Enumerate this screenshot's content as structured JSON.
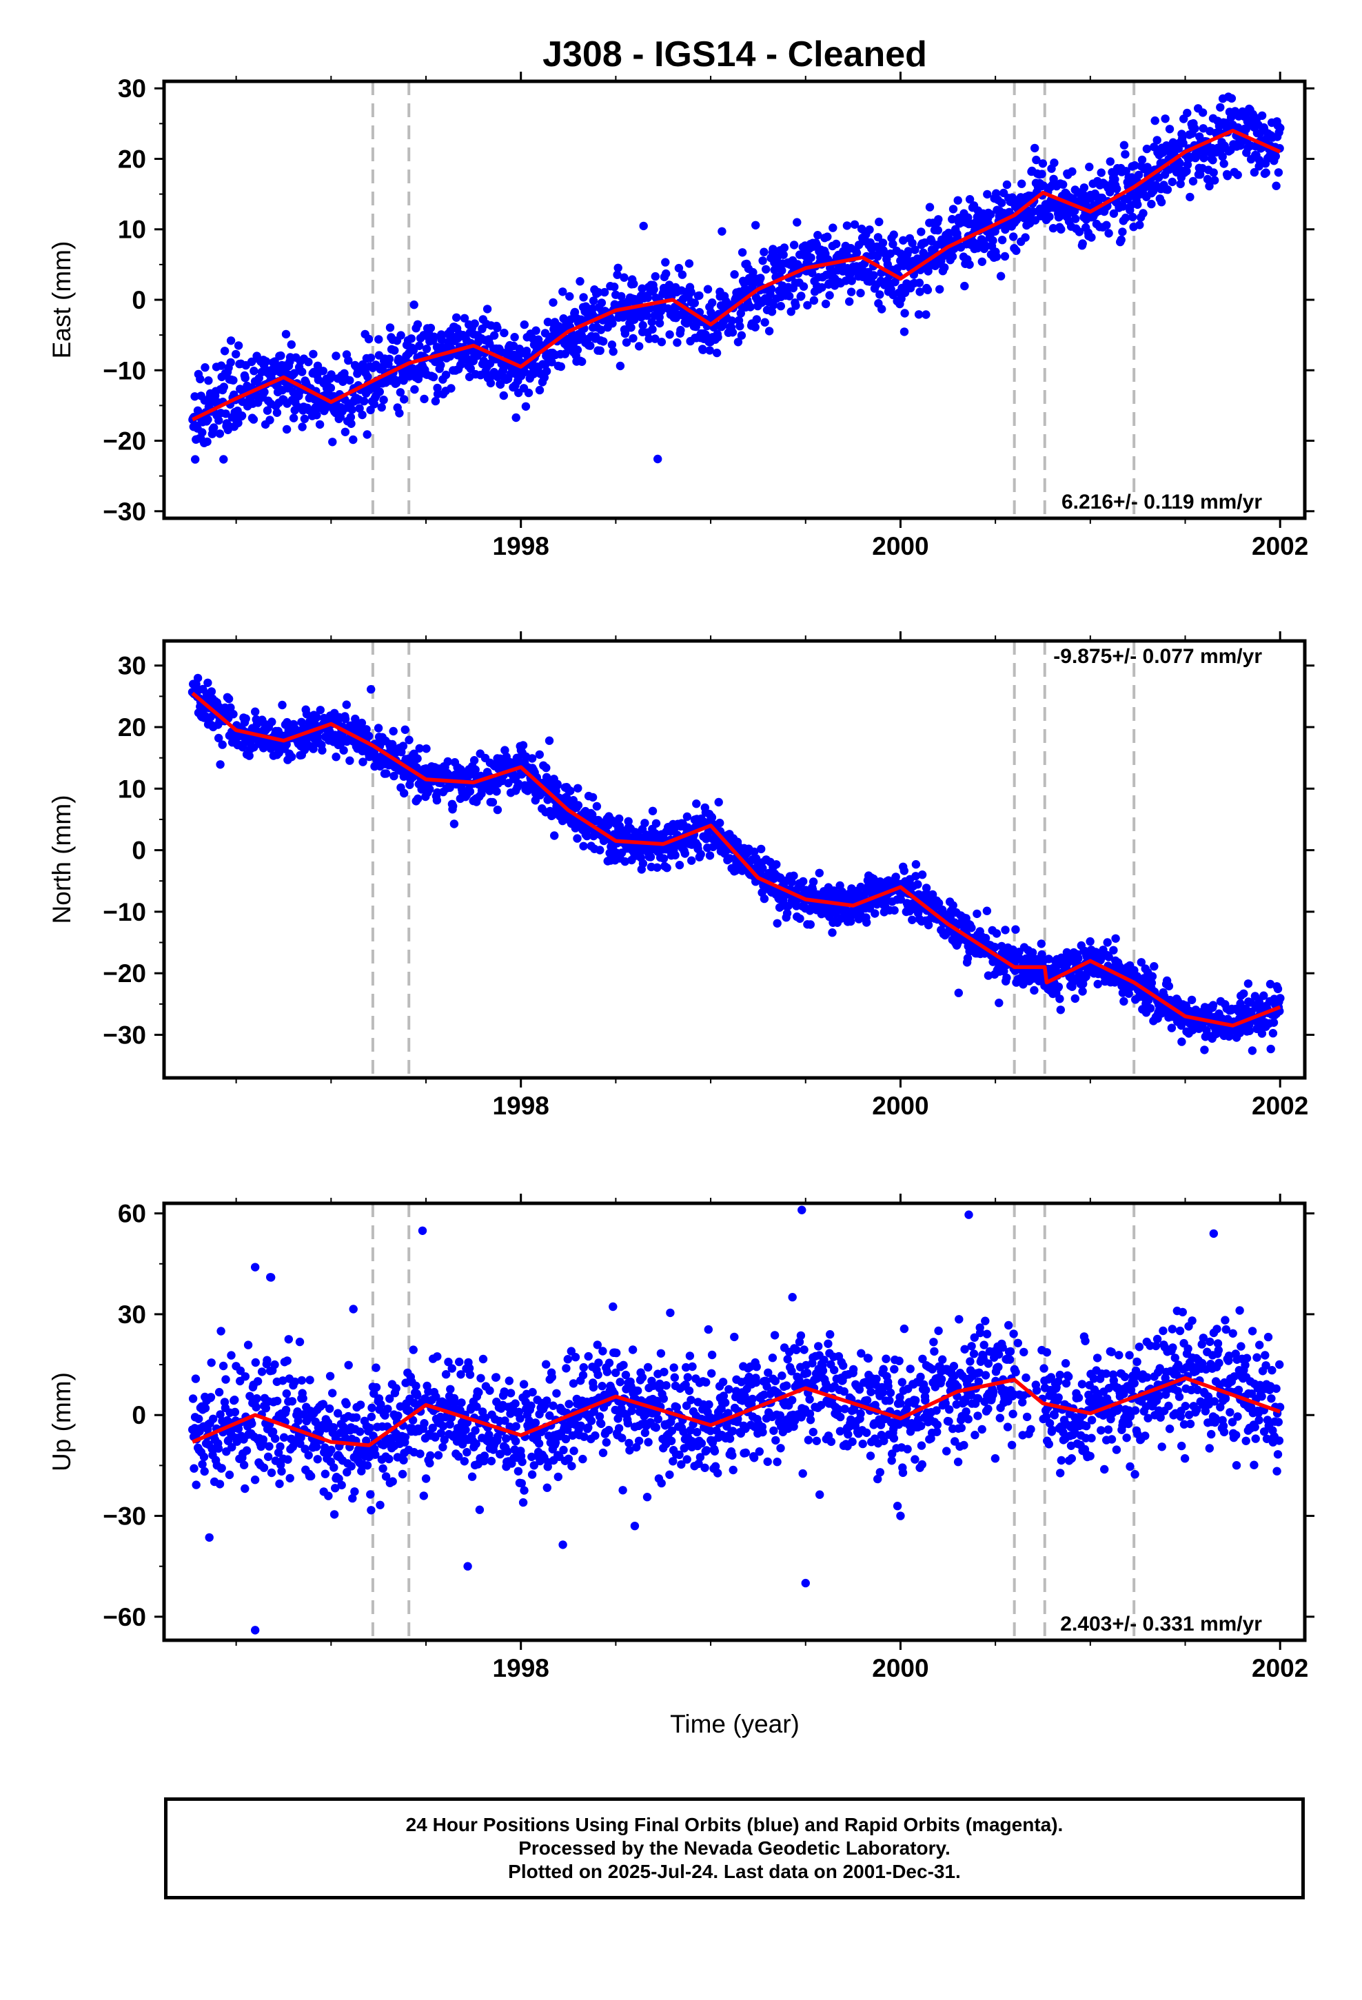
{
  "title": "J308  - IGS14 - Cleaned",
  "footer": {
    "line1": "24 Hour Positions Using Final Orbits (blue) and Rapid Orbits (magenta).",
    "line2": "Processed by the Nevada Geodetic Laboratory.",
    "line3": "Plotted on 2025-Jul-24. Last data on 2001-Dec-31."
  },
  "colors": {
    "points": "#0000ff",
    "model": "#ff0000",
    "breaks": "#bbbbbb",
    "frame": "#000000"
  },
  "xlabel": "Time (year)",
  "chart_data": [
    {
      "type": "scatter",
      "name": "east",
      "ylabel": "East (mm)",
      "xlim": [
        1996.12,
        2002.13
      ],
      "ylim": [
        -31,
        31
      ],
      "yticks": [
        -30,
        -20,
        -10,
        0,
        10,
        20,
        30
      ],
      "xticks": [
        1998,
        2000,
        2002
      ],
      "rate": "6.216+/- 0.119 mm/yr",
      "rate_position": "bottom-right",
      "breaks": [
        1997.22,
        1997.41,
        2000.6,
        2000.76,
        2001.23
      ],
      "x_range": [
        1996.27,
        2002.0
      ],
      "trend": {
        "slope": 6.216,
        "value_at_2000": 4.5,
        "amp1": 2.8,
        "amp2": 0.8,
        "phase1": 0.55,
        "phase2": 0.2
      },
      "offsets": [
        [
          1997.41,
          0.0
        ],
        [
          2000.6,
          2.5
        ],
        [
          2001.23,
          2.0
        ]
      ],
      "noise_sigma": 2.6,
      "n_points": 2000,
      "model_line": {
        "x": [
          1996.27,
          1996.5,
          1996.75,
          1997.0,
          1997.22,
          1997.41,
          1997.75,
          1998.0,
          1998.25,
          1998.5,
          1998.8,
          1999.0,
          1999.25,
          1999.5,
          1999.8,
          2000.0,
          2000.25,
          2000.6,
          2000.75,
          2001.0,
          2001.23,
          2001.5,
          2001.75,
          2002.0
        ],
        "y": [
          -17.0,
          -14.0,
          -11.0,
          -14.5,
          -11.5,
          -9.0,
          -6.5,
          -9.5,
          -4.5,
          -1.5,
          0.0,
          -3.5,
          1.5,
          4.5,
          6.0,
          3.0,
          7.5,
          12.0,
          15.2,
          12.5,
          16.0,
          21.0,
          24.0,
          21.0
        ]
      }
    },
    {
      "type": "scatter",
      "name": "north",
      "ylabel": "North (mm)",
      "xlim": [
        1996.12,
        2002.13
      ],
      "ylim": [
        -37,
        34
      ],
      "yticks": [
        -30,
        -20,
        -10,
        0,
        10,
        20,
        30
      ],
      "xticks": [
        1998,
        2000,
        2002
      ],
      "rate": "-9.875+/- 0.077 mm/yr",
      "rate_position": "top-right",
      "breaks": [
        1997.22,
        1997.41,
        2000.6,
        2000.76,
        2001.23
      ],
      "x_range": [
        1996.27,
        2002.0
      ],
      "noise_sigma": 1.8,
      "n_points": 2000,
      "model_line": {
        "x": [
          1996.27,
          1996.5,
          1996.75,
          1997.0,
          1997.22,
          1997.5,
          1997.75,
          1998.0,
          1998.25,
          1998.5,
          1998.75,
          1999.0,
          1999.25,
          1999.5,
          1999.75,
          2000.0,
          2000.25,
          2000.5,
          2000.6,
          2000.76,
          2000.77,
          2001.0,
          2001.23,
          2001.5,
          2001.75,
          2002.0
        ],
        "y": [
          25.5,
          19.5,
          17.8,
          20.5,
          17.0,
          11.5,
          11.0,
          13.5,
          6.5,
          1.5,
          1.0,
          4.0,
          -4.5,
          -8.0,
          -9.0,
          -6.0,
          -12.0,
          -17.0,
          -19.0,
          -19.0,
          -21.5,
          -18.0,
          -21.5,
          -27.0,
          -28.5,
          -25.5
        ]
      }
    },
    {
      "type": "scatter",
      "name": "up",
      "ylabel": "Up (mm)",
      "xlim": [
        1996.12,
        2002.13
      ],
      "ylim": [
        -67,
        63
      ],
      "yticks": [
        -60,
        -30,
        0,
        30,
        60
      ],
      "xticks": [
        1998,
        2000,
        2002
      ],
      "rate": "2.403+/- 0.331 mm/yr",
      "rate_position": "bottom-right",
      "breaks": [
        1997.22,
        1997.41,
        2000.6,
        2000.76,
        2001.23
      ],
      "x_range": [
        1996.27,
        2002.0
      ],
      "noise_sigma": 8.5,
      "n_points": 2000,
      "outliers": [
        [
          1996.6,
          44
        ],
        [
          1996.68,
          41
        ],
        [
          1996.6,
          -64
        ],
        [
          1997.72,
          -45
        ],
        [
          1999.48,
          61
        ],
        [
          1999.5,
          -50
        ],
        [
          2001.65,
          54
        ],
        [
          1998.6,
          -33
        ],
        [
          2000.0,
          -30
        ]
      ],
      "model_line": {
        "x": [
          1996.27,
          1996.6,
          1997.0,
          1997.2,
          1997.5,
          1998.0,
          1998.5,
          1999.0,
          1999.5,
          2000.0,
          2000.3,
          2000.6,
          2000.75,
          2001.0,
          2001.5,
          2002.0
        ],
        "y": [
          -8.0,
          0.0,
          -8.0,
          -9.0,
          3.0,
          -6.0,
          5.5,
          -3.0,
          8.0,
          -1.0,
          7.0,
          10.5,
          3.5,
          0.5,
          11.0,
          1.0
        ]
      }
    }
  ]
}
